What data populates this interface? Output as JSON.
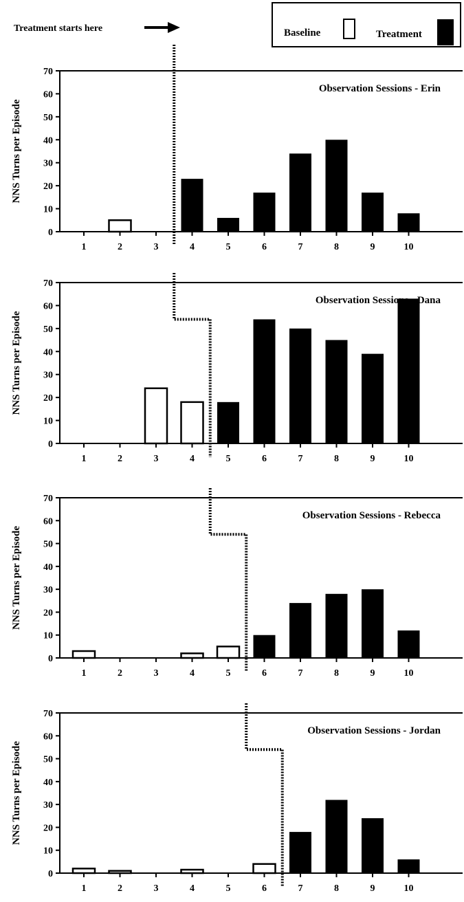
{
  "legend": {
    "baseline_label": "Baseline",
    "treatment_label": "Treatment",
    "annotation": "Treatment starts here"
  },
  "colors": {
    "baseline_fill": "#ffffff",
    "treatment_fill": "#000000",
    "axis": "#000000",
    "phase_line": "#000000"
  },
  "chart_data": [
    {
      "type": "bar",
      "title": "Observation Sessions - Erin",
      "ylabel": "NNS Turns per Episode",
      "xlabel": "",
      "ylim": [
        0,
        70
      ],
      "yticks": [
        0,
        10,
        20,
        30,
        40,
        50,
        60,
        70
      ],
      "categories": [
        "1",
        "2",
        "3",
        "4",
        "5",
        "6",
        "7",
        "8",
        "9",
        "10"
      ],
      "values": [
        0,
        5,
        0,
        23,
        6,
        17,
        34,
        40,
        17,
        8
      ],
      "phases": [
        "baseline",
        "baseline",
        "baseline",
        "treatment",
        "treatment",
        "treatment",
        "treatment",
        "treatment",
        "treatment",
        "treatment"
      ],
      "treatment_start_session": 4,
      "grid": false
    },
    {
      "type": "bar",
      "title": "Observation Sessions - Dana",
      "ylabel": "NNS Turns per Episode",
      "xlabel": "",
      "ylim": [
        0,
        70
      ],
      "yticks": [
        0,
        10,
        20,
        30,
        40,
        50,
        60,
        70
      ],
      "categories": [
        "1",
        "2",
        "3",
        "4",
        "5",
        "6",
        "7",
        "8",
        "9",
        "10"
      ],
      "values": [
        0,
        0,
        24,
        18,
        18,
        54,
        50,
        45,
        39,
        63
      ],
      "phases": [
        "baseline",
        "baseline",
        "baseline",
        "baseline",
        "treatment",
        "treatment",
        "treatment",
        "treatment",
        "treatment",
        "treatment"
      ],
      "treatment_start_session": 5,
      "grid": false
    },
    {
      "type": "bar",
      "title": "Observation Sessions - Rebecca",
      "ylabel": "NNS Turns per Episode",
      "xlabel": "",
      "ylim": [
        0,
        70
      ],
      "yticks": [
        0,
        10,
        20,
        30,
        40,
        50,
        60,
        70
      ],
      "categories": [
        "1",
        "2",
        "3",
        "4",
        "5",
        "6",
        "7",
        "8",
        "9",
        "10"
      ],
      "values": [
        3,
        0,
        0,
        2,
        5,
        10,
        24,
        28,
        30,
        12
      ],
      "phases": [
        "baseline",
        "baseline",
        "baseline",
        "baseline",
        "baseline",
        "treatment",
        "treatment",
        "treatment",
        "treatment",
        "treatment"
      ],
      "treatment_start_session": 6,
      "grid": false
    },
    {
      "type": "bar",
      "title": "Observation Sessions - Jordan",
      "ylabel": "NNS Turns per Episode",
      "xlabel": "",
      "ylim": [
        0,
        70
      ],
      "yticks": [
        0,
        10,
        20,
        30,
        40,
        50,
        60,
        70
      ],
      "categories": [
        "1",
        "2",
        "3",
        "4",
        "5",
        "6",
        "7",
        "8",
        "9",
        "10"
      ],
      "values": [
        2,
        1,
        0,
        1.5,
        0,
        4,
        18,
        32,
        24,
        6
      ],
      "phases": [
        "baseline",
        "baseline",
        "baseline",
        "baseline",
        "baseline",
        "baseline",
        "treatment",
        "treatment",
        "treatment",
        "treatment"
      ],
      "treatment_start_session": 7,
      "grid": false
    }
  ]
}
